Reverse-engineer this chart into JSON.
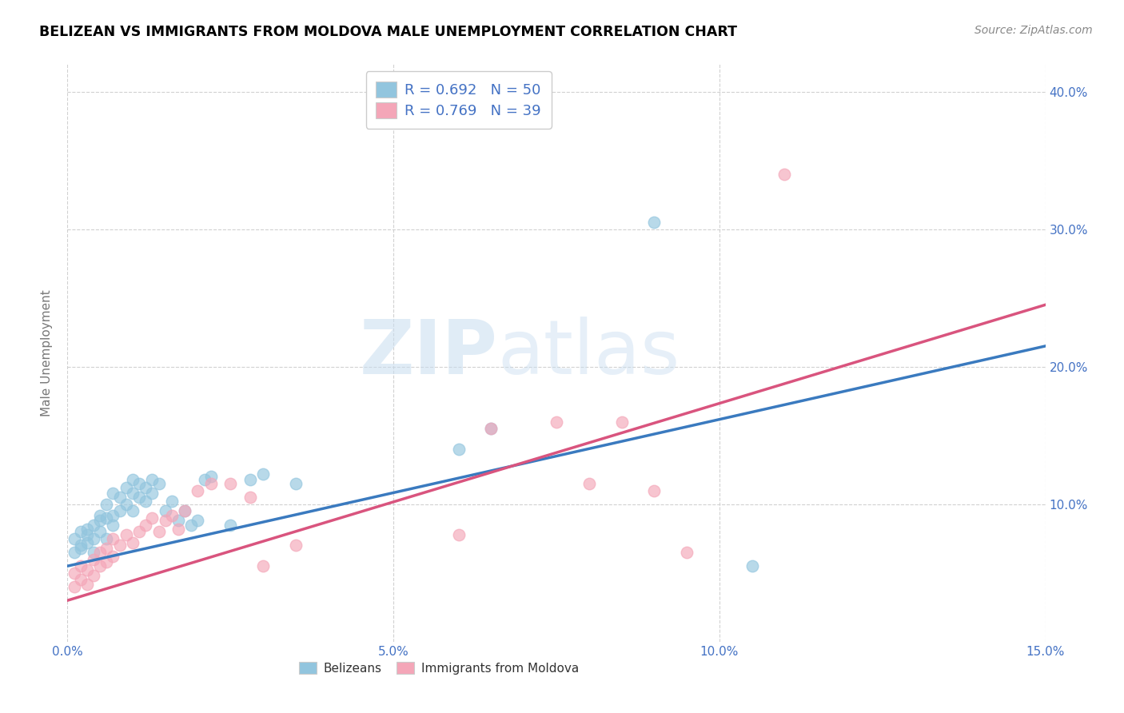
{
  "title": "BELIZEAN VS IMMIGRANTS FROM MOLDOVA MALE UNEMPLOYMENT CORRELATION CHART",
  "source": "Source: ZipAtlas.com",
  "ylabel_label": "Male Unemployment",
  "xlim": [
    0.0,
    0.15
  ],
  "ylim": [
    0.0,
    0.42
  ],
  "xtick_vals": [
    0.0,
    0.05,
    0.1,
    0.15
  ],
  "ytick_vals": [
    0.1,
    0.2,
    0.3,
    0.4
  ],
  "xtick_labels": [
    "0.0%",
    "5.0%",
    "10.0%",
    "15.0%"
  ],
  "ytick_labels": [
    "10.0%",
    "20.0%",
    "30.0%",
    "40.0%"
  ],
  "blue_color": "#92c5de",
  "pink_color": "#f4a6b8",
  "blue_line_color": "#3a7abf",
  "pink_line_color": "#d9547e",
  "legend_label_blue": "R = 0.692   N = 50",
  "legend_label_pink": "R = 0.769   N = 39",
  "watermark_zip": "ZIP",
  "watermark_atlas": "atlas",
  "blue_n": 50,
  "pink_n": 39,
  "belizean_x": [
    0.001,
    0.001,
    0.002,
    0.002,
    0.002,
    0.003,
    0.003,
    0.003,
    0.004,
    0.004,
    0.004,
    0.005,
    0.005,
    0.005,
    0.006,
    0.006,
    0.006,
    0.007,
    0.007,
    0.007,
    0.008,
    0.008,
    0.009,
    0.009,
    0.01,
    0.01,
    0.01,
    0.011,
    0.011,
    0.012,
    0.012,
    0.013,
    0.013,
    0.014,
    0.015,
    0.016,
    0.017,
    0.018,
    0.019,
    0.02,
    0.021,
    0.022,
    0.025,
    0.028,
    0.03,
    0.035,
    0.06,
    0.065,
    0.09,
    0.105
  ],
  "belizean_y": [
    0.065,
    0.075,
    0.07,
    0.08,
    0.068,
    0.072,
    0.082,
    0.078,
    0.075,
    0.085,
    0.065,
    0.088,
    0.08,
    0.092,
    0.075,
    0.09,
    0.1,
    0.085,
    0.092,
    0.108,
    0.095,
    0.105,
    0.1,
    0.112,
    0.095,
    0.108,
    0.118,
    0.105,
    0.115,
    0.102,
    0.112,
    0.108,
    0.118,
    0.115,
    0.095,
    0.102,
    0.088,
    0.095,
    0.085,
    0.088,
    0.118,
    0.12,
    0.085,
    0.118,
    0.122,
    0.115,
    0.14,
    0.155,
    0.305,
    0.055
  ],
  "moldova_x": [
    0.001,
    0.001,
    0.002,
    0.002,
    0.003,
    0.003,
    0.004,
    0.004,
    0.005,
    0.005,
    0.006,
    0.006,
    0.007,
    0.007,
    0.008,
    0.009,
    0.01,
    0.011,
    0.012,
    0.013,
    0.014,
    0.015,
    0.016,
    0.017,
    0.018,
    0.02,
    0.022,
    0.025,
    0.028,
    0.03,
    0.035,
    0.06,
    0.065,
    0.075,
    0.08,
    0.085,
    0.09,
    0.095,
    0.11
  ],
  "moldova_y": [
    0.04,
    0.05,
    0.045,
    0.055,
    0.042,
    0.052,
    0.048,
    0.06,
    0.055,
    0.065,
    0.058,
    0.068,
    0.062,
    0.075,
    0.07,
    0.078,
    0.072,
    0.08,
    0.085,
    0.09,
    0.08,
    0.088,
    0.092,
    0.082,
    0.095,
    0.11,
    0.115,
    0.115,
    0.105,
    0.055,
    0.07,
    0.078,
    0.155,
    0.16,
    0.115,
    0.16,
    0.11,
    0.065,
    0.34
  ]
}
